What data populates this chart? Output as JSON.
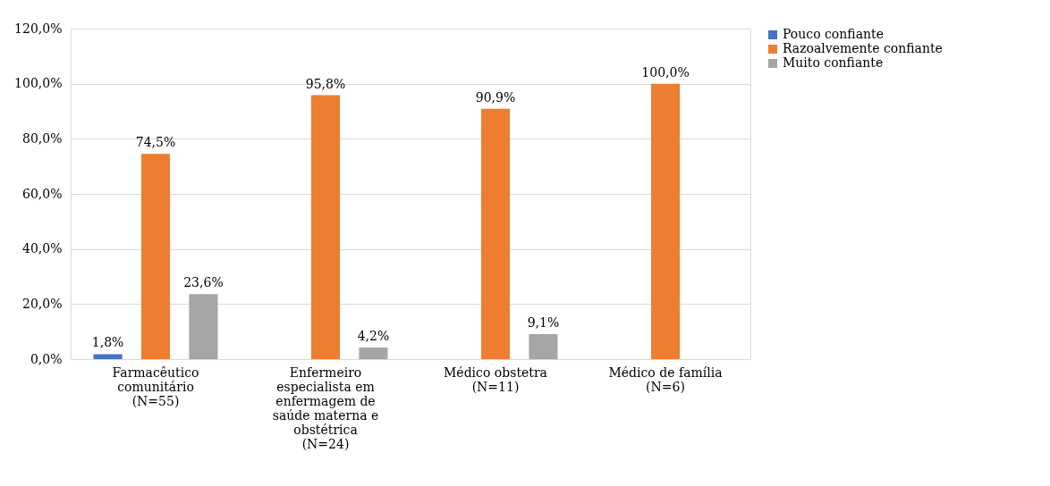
{
  "chart_data": {
    "type": "bar",
    "categories": [
      "Farmacêutico\ncomunitário\n(N=55)",
      "Enfermeiro\nespecialista em\nenfermagem de\nsaúde materna e\nobstétrica\n(N=24)",
      "Médico obstetra\n(N=11)",
      "Médico de família\n(N=6)"
    ],
    "series": [
      {
        "name": "Pouco confiante",
        "color": "#4472c4",
        "values": [
          1.8,
          null,
          null,
          null
        ],
        "value_labels": [
          "1,8%",
          null,
          null,
          null
        ]
      },
      {
        "name": "Razoalvemente confiante",
        "color": "#ed7d31",
        "values": [
          74.5,
          95.8,
          90.9,
          100.0
        ],
        "value_labels": [
          "74,5%",
          "95,8%",
          "90,9%",
          "100,0%"
        ]
      },
      {
        "name": "Muito confiante",
        "color": "#a5a5a5",
        "values": [
          23.6,
          4.2,
          9.1,
          null
        ],
        "value_labels": [
          "23,6%",
          "4,2%",
          "9,1%",
          null
        ]
      }
    ],
    "ylim": [
      0,
      120
    ],
    "yticks": [
      {
        "value": 0,
        "label": "0,0%"
      },
      {
        "value": 20,
        "label": "20,0%"
      },
      {
        "value": 40,
        "label": "40,0%"
      },
      {
        "value": 60,
        "label": "60,0%"
      },
      {
        "value": 80,
        "label": "80,0%"
      },
      {
        "value": 100,
        "label": "100,0%"
      },
      {
        "value": 120,
        "label": "120,0%"
      }
    ],
    "grid": "y",
    "legend": "right"
  }
}
